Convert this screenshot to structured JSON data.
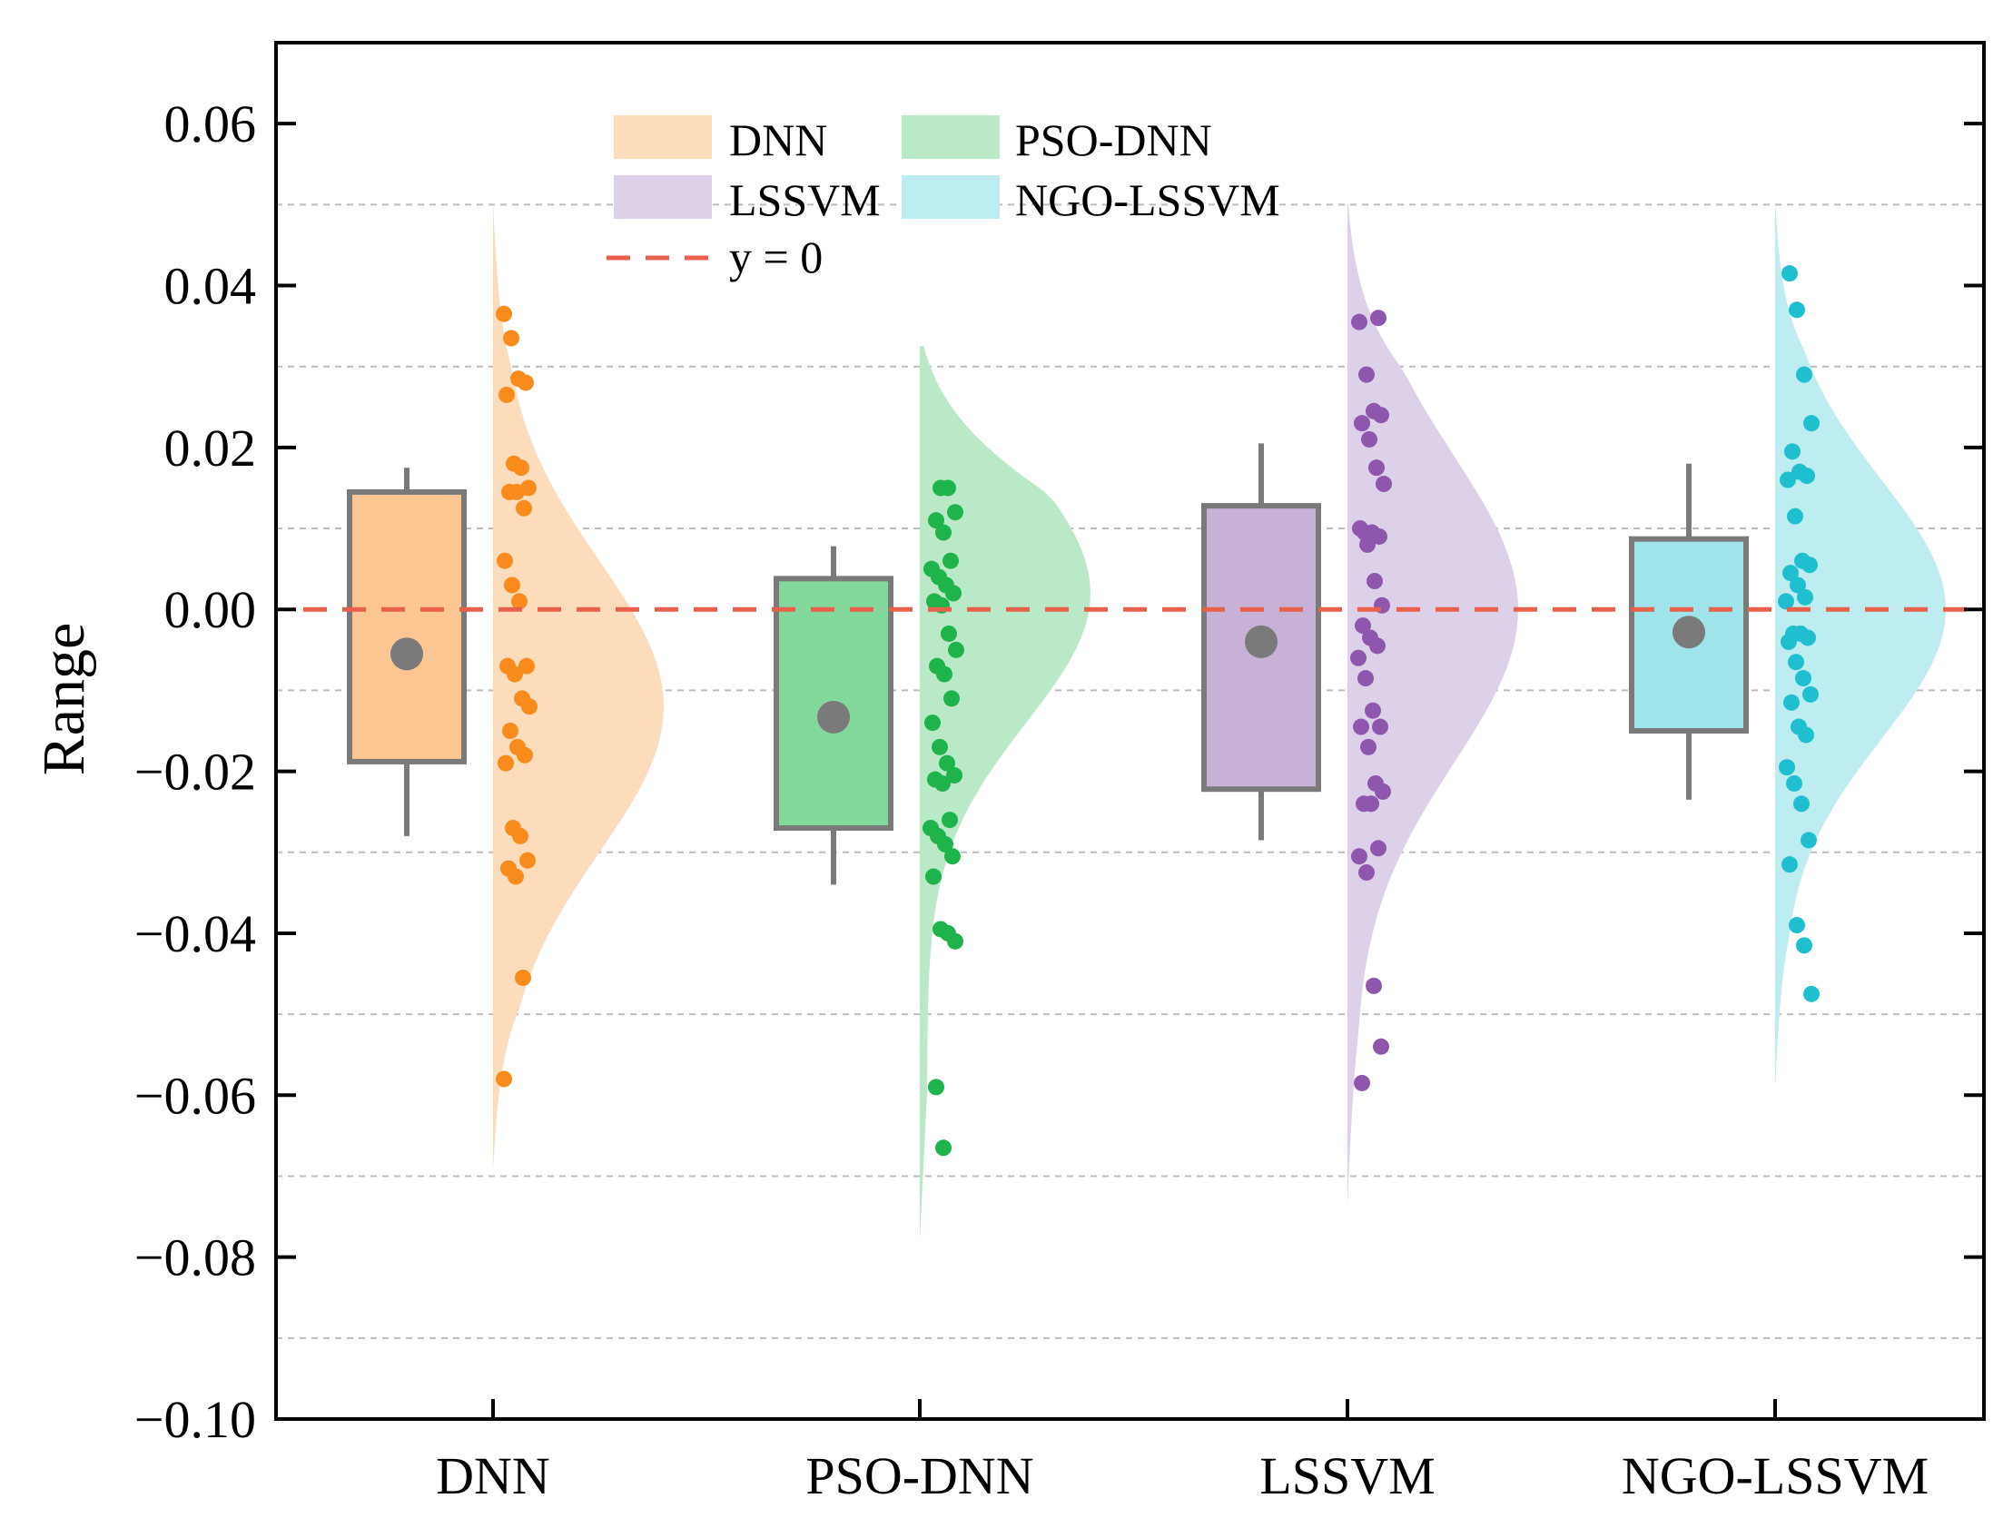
{
  "chart_data": {
    "type": "raincloud",
    "title": "",
    "xlabel": "",
    "ylabel": "Range",
    "ylim": [
      -0.1,
      0.07
    ],
    "yticks": [
      -0.1,
      -0.08,
      -0.06,
      -0.04,
      -0.02,
      0.0,
      0.02,
      0.04,
      0.06
    ],
    "ytick_labels": [
      "−0.10",
      "−0.08",
      "−0.06",
      "−0.04",
      "−0.02",
      "0.00",
      "0.02",
      "0.04",
      "0.06"
    ],
    "grid_y": [
      -0.09,
      -0.07,
      -0.05,
      -0.03,
      -0.01,
      0.01,
      0.03,
      0.05
    ],
    "reference_line": {
      "y": 0,
      "label": "y = 0",
      "color": "#e8604a"
    },
    "legend_position": "top-left",
    "categories": [
      "DNN",
      "PSO-DNN",
      "LSSVM",
      "NGO-LSSVM"
    ],
    "series": [
      {
        "name": "DNN",
        "fill_color": "#fcc693",
        "cloud_color": "#fddcbc",
        "point_color": "#f88b1c",
        "box": {
          "whisker_low": -0.028,
          "q1": -0.0188,
          "q3": 0.0145,
          "whisker_high": 0.0175,
          "mean": -0.0055
        },
        "density_range": [
          -0.069,
          0.05
        ],
        "density_peak": -0.012,
        "density_width": 0.018,
        "points": [
          0.0365,
          0.0335,
          0.0285,
          0.028,
          0.0265,
          0.018,
          0.0175,
          0.015,
          0.0145,
          0.0145,
          0.0125,
          0.006,
          0.003,
          0.001,
          -0.007,
          -0.007,
          -0.008,
          -0.011,
          -0.012,
          -0.015,
          -0.017,
          -0.018,
          -0.019,
          -0.027,
          -0.028,
          -0.031,
          -0.032,
          -0.033,
          -0.0455,
          -0.058
        ]
      },
      {
        "name": "PSO-DNN",
        "fill_color": "#83d89c",
        "cloud_color": "#b9e9c6",
        "point_color": "#1eb34b",
        "box": {
          "whisker_low": -0.034,
          "q1": -0.027,
          "q3": 0.0038,
          "whisker_high": 0.0078,
          "mean": -0.0133
        },
        "density_range": [
          -0.078,
          0.0325
        ],
        "density_peak": 0.002,
        "density_width": 0.016,
        "points": [
          0.015,
          0.015,
          0.012,
          0.011,
          0.0095,
          0.006,
          0.005,
          0.004,
          0.003,
          0.002,
          0.001,
          0.0005,
          -0.003,
          -0.005,
          -0.007,
          -0.008,
          -0.011,
          -0.014,
          -0.017,
          -0.019,
          -0.0205,
          -0.021,
          -0.0215,
          -0.026,
          -0.027,
          -0.028,
          -0.029,
          -0.0305,
          -0.033,
          -0.0395,
          -0.04,
          -0.041,
          -0.059,
          -0.0665
        ]
      },
      {
        "name": "LSSVM",
        "fill_color": "#c8b1d6",
        "cloud_color": "#ddd0e9",
        "point_color": "#8f56ad",
        "box": {
          "whisker_low": -0.0285,
          "q1": -0.0222,
          "q3": 0.0128,
          "whisker_high": 0.0205,
          "mean": -0.004
        },
        "density_range": [
          -0.0735,
          0.05
        ],
        "density_peak": 0.0,
        "density_width": 0.019,
        "points": [
          0.036,
          0.0355,
          0.029,
          0.0245,
          0.024,
          0.023,
          0.021,
          0.0175,
          0.0155,
          0.0095,
          0.0095,
          0.009,
          0.01,
          0.008,
          0.0035,
          0.0005,
          -0.002,
          -0.0035,
          -0.0045,
          -0.006,
          -0.0085,
          -0.0125,
          -0.0145,
          -0.0145,
          -0.017,
          -0.0215,
          -0.0225,
          -0.024,
          -0.024,
          -0.0295,
          -0.0305,
          -0.0325,
          -0.0465,
          -0.054,
          -0.0585
        ]
      },
      {
        "name": "NGO-LSSVM",
        "fill_color": "#9fe3eb",
        "cloud_color": "#bdecf1",
        "point_color": "#1fbfd0",
        "box": {
          "whisker_low": -0.0235,
          "q1": -0.015,
          "q3": 0.0087,
          "whisker_high": 0.018,
          "mean": -0.0028
        },
        "density_range": [
          -0.059,
          0.05
        ],
        "density_peak": 0.0,
        "density_width": 0.016,
        "points": [
          0.0415,
          0.037,
          0.029,
          0.023,
          0.0195,
          0.017,
          0.0165,
          0.016,
          0.0115,
          0.006,
          0.0055,
          0.0045,
          0.003,
          0.0015,
          0.001,
          -0.003,
          -0.003,
          -0.0035,
          -0.004,
          -0.0065,
          -0.0085,
          -0.0105,
          -0.0115,
          -0.0145,
          -0.0155,
          -0.0195,
          -0.0215,
          -0.024,
          -0.0285,
          -0.0315,
          -0.039,
          -0.0415,
          -0.0475
        ]
      }
    ]
  }
}
